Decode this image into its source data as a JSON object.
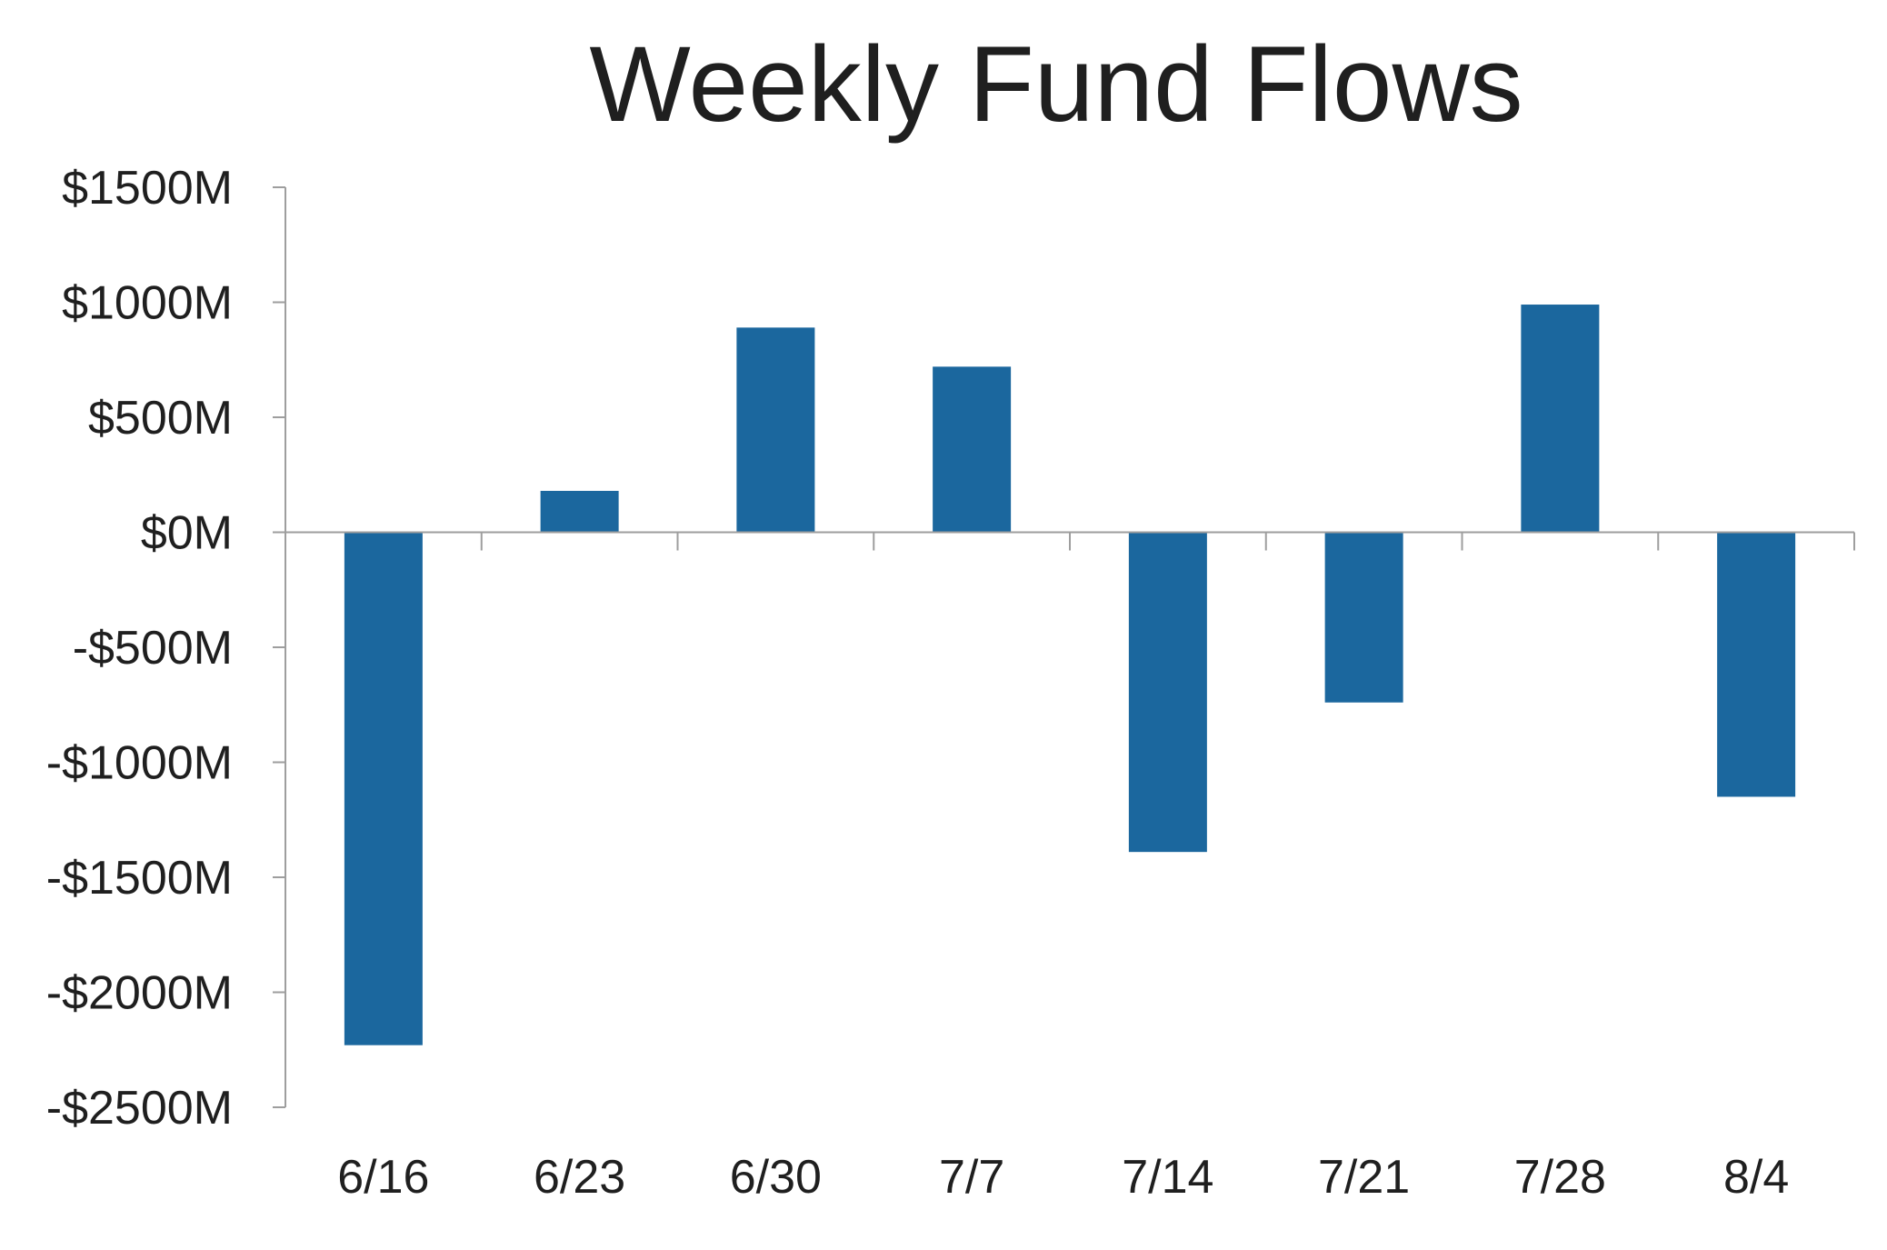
{
  "colors": {
    "bar": "#1b679e",
    "axis": "#9e9e9e",
    "text": "#1f1f1f",
    "background": "#ffffff"
  },
  "chart_data": {
    "type": "bar",
    "title": "Weekly Fund Flows",
    "xlabel": "",
    "ylabel": "",
    "categories": [
      "6/16",
      "6/23",
      "6/30",
      "7/7",
      "7/14",
      "7/21",
      "7/28",
      "8/4"
    ],
    "values": [
      -2230,
      180,
      890,
      720,
      -1390,
      -740,
      990,
      -1150
    ],
    "unit": "millions USD",
    "ylim": [
      -2500,
      1500
    ],
    "yticks": [
      1500,
      1000,
      500,
      0,
      -500,
      -1000,
      -1500,
      -2000,
      -2500
    ],
    "ytick_labels": [
      "$1500M",
      "$1000M",
      "$500M",
      "$0M",
      "-$500M",
      "-$1000M",
      "-$1500M",
      "-$2000M",
      "-$2500M"
    ],
    "grid": false,
    "legend": "none"
  }
}
